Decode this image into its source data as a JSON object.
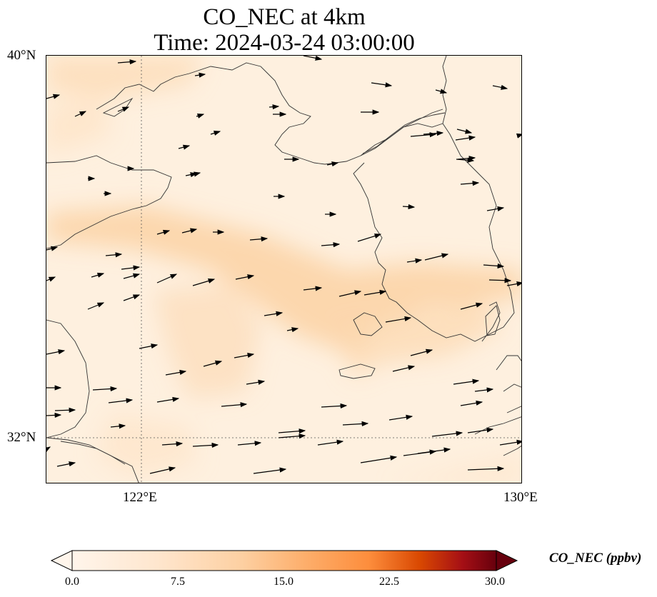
{
  "title": {
    "line1": "CO_NEC at 4km",
    "line2": "Time: 2024-03-24 03:00:00"
  },
  "axes": {
    "lat_labels": [
      "40°N",
      "32°N"
    ],
    "lon_labels": [
      "122°E",
      "130°E"
    ]
  },
  "colorbar": {
    "label": "CO_NEC (ppbv)",
    "ticks": [
      "0.0",
      "7.5",
      "15.0",
      "22.5",
      "30.0"
    ],
    "colors": [
      "#fff5eb",
      "#fdd0a2",
      "#fd8d3c",
      "#d94801",
      "#a50f15",
      "#67000d"
    ]
  },
  "map": {
    "extent": {
      "lon": [
        120,
        130
      ],
      "lat": [
        31,
        40
      ]
    },
    "gridlines": {
      "lat": [
        32
      ],
      "lon": [
        122
      ]
    },
    "background_color": "#fef0df",
    "plume_color": "#fcd7ae",
    "coastline_color": "#333333",
    "vector_color": "#000000"
  }
}
